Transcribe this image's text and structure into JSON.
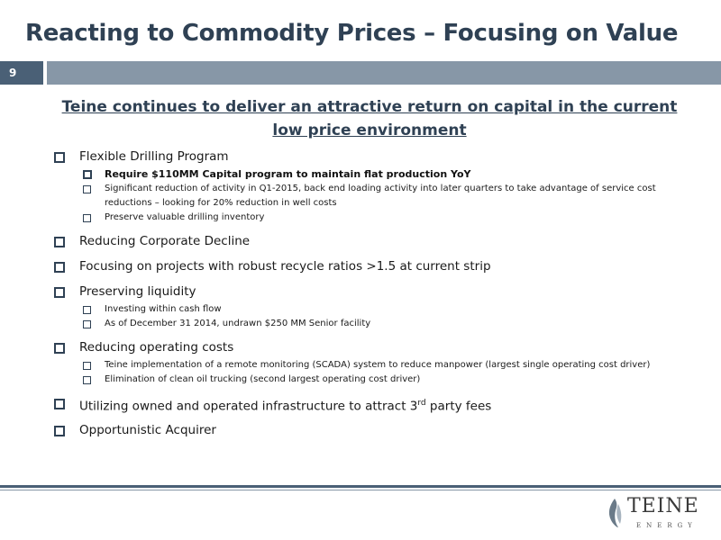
{
  "slide": {
    "title": "Reacting to Commodity Prices – Focusing on Value",
    "page_number": "9",
    "headline": "Teine continues to deliver an attractive return on capital in the current low price environment"
  },
  "bullets": [
    {
      "label": "Flexible Drilling Program",
      "sub": [
        "Require $110MM Capital program to maintain flat production YoY",
        "Significant reduction of activity in Q1-2015, back end loading activity into later quarters to take advantage of service cost reductions – looking for 20% reduction in well costs",
        "Preserve valuable drilling inventory"
      ]
    },
    {
      "label": "Reducing Corporate Decline"
    },
    {
      "label": "Focusing on projects with robust recycle ratios >1.5 at current strip"
    },
    {
      "label": "Preserving liquidity",
      "sub": [
        "Investing within cash flow",
        "As of December 31 2014, undrawn $250 MM Senior facility"
      ]
    },
    {
      "label": "Reducing operating costs",
      "sub": [
        "Teine implementation of a remote monitoring (SCADA) system to reduce manpower (largest single operating cost driver)",
        "Elimination of clean oil trucking (second largest operating cost driver)"
      ]
    },
    {
      "label_before": "Utilizing owned and operated infrastructure to attract 3",
      "label_sup": "rd",
      "label_after": " party fees"
    },
    {
      "label": "Opportunistic Acquirer"
    }
  ],
  "logo": {
    "word": "TEINE",
    "sub": "ENERGY"
  },
  "colors": {
    "title": "#2f4154",
    "bar_dark": "#4a6076",
    "bar_light": "#8797a7"
  }
}
